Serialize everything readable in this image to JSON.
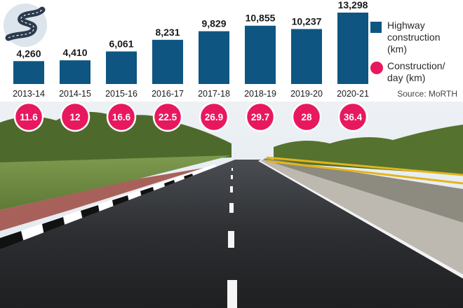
{
  "colors": {
    "bar": "#0e5582",
    "per_day_circle": "#e8185e",
    "per_day_circle_border": "#ffffff"
  },
  "icon": "winding-road-icon",
  "source": "Source: MoRTH",
  "chart_data": {
    "type": "bar",
    "categories": [
      "2013-14",
      "2014-15",
      "2015-16",
      "2016-17",
      "2017-18",
      "2018-19",
      "2019-20",
      "2020-21"
    ],
    "series": [
      {
        "name": "Highway construction (km)",
        "values": [
          4260,
          4410,
          6061,
          8231,
          9829,
          10855,
          10237,
          13298
        ],
        "value_labels": [
          "4,260",
          "4,410",
          "6,061",
          "8,231",
          "9,829",
          "10,855",
          "10,237",
          "13,298"
        ]
      },
      {
        "name": "Construction/ day (km)",
        "values": [
          11.6,
          12,
          16.6,
          22.5,
          26.9,
          29.7,
          28,
          36.4
        ],
        "value_labels": [
          "11.6",
          "12",
          "16.6",
          "22.5",
          "26.9",
          "29.7",
          "28",
          "36.4"
        ]
      }
    ],
    "title": "",
    "xlabel": "",
    "ylabel": "",
    "ylim": [
      0,
      13298
    ],
    "grid": false,
    "legend": "right"
  }
}
